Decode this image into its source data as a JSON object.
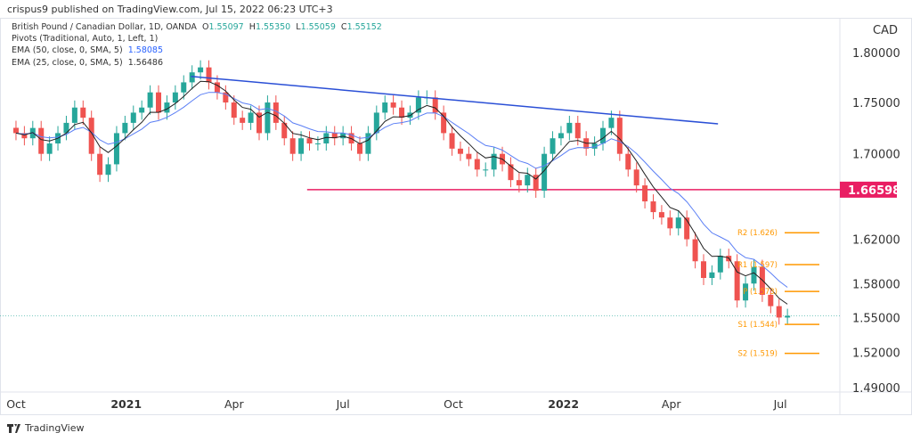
{
  "header": {
    "published": "crispus9 published on TradingView.com, Jul 15, 2022 06:23 UTC+3",
    "symbol": "British Pound / Canadian Dollar, 1D, OANDA",
    "ohlc": {
      "o_label": "O",
      "o": "1.55097",
      "h_label": "H",
      "h": "1.55350",
      "l_label": "L",
      "l": "1.55059",
      "c_label": "C",
      "c": "1.55152"
    },
    "pivots": "Pivots (Traditional, Auto, 1, Left, 1)",
    "ema50_label": "EMA (50, close, 0, SMA, 5)",
    "ema50_value": "1.58085",
    "ema25_label": "EMA (25, close, 0, SMA, 5)",
    "ema25_value": "1.56486"
  },
  "footer": {
    "brand": "TradingView"
  },
  "colors": {
    "up": "#26a69a",
    "down": "#ef5350",
    "ema50": "#5b7ff5",
    "ema25": "#222222",
    "trendline": "#2a4fd6",
    "support": "#e91e63",
    "pivot": "#ff9800"
  },
  "chart_data": {
    "type": "candlestick",
    "scale": "log",
    "currency": "CAD",
    "ylim": [
      1.47,
      1.83
    ],
    "y_ticks": [
      "1.80000",
      "1.75000",
      "1.70000",
      "1.62000",
      "1.58000",
      "1.55000",
      "1.52000",
      "1.49000"
    ],
    "x_ticks": [
      {
        "label": "Oct",
        "date": "2020-10-01",
        "bold": false
      },
      {
        "label": "2021",
        "date": "2021-01-01",
        "bold": true
      },
      {
        "label": "Apr",
        "date": "2021-04-01",
        "bold": false
      },
      {
        "label": "Jul",
        "date": "2021-07-01",
        "bold": false
      },
      {
        "label": "Oct",
        "date": "2021-10-01",
        "bold": false
      },
      {
        "label": "2022",
        "date": "2022-01-01",
        "bold": true
      },
      {
        "label": "Apr",
        "date": "2022-04-01",
        "bold": false
      },
      {
        "label": "Jul",
        "date": "2022-07-01",
        "bold": false
      }
    ],
    "start_date": "2020-09-28",
    "interval_days": 7,
    "closes": [
      1.72,
      1.715,
      1.725,
      1.7,
      1.71,
      1.72,
      1.73,
      1.745,
      1.735,
      1.7,
      1.68,
      1.69,
      1.72,
      1.73,
      1.74,
      1.745,
      1.76,
      1.74,
      1.75,
      1.76,
      1.77,
      1.78,
      1.785,
      1.77,
      1.76,
      1.75,
      1.735,
      1.73,
      1.74,
      1.72,
      1.75,
      1.73,
      1.715,
      1.7,
      1.715,
      1.71,
      1.71,
      1.72,
      1.715,
      1.72,
      1.71,
      1.7,
      1.72,
      1.74,
      1.75,
      1.745,
      1.735,
      1.74,
      1.755,
      1.755,
      1.74,
      1.72,
      1.705,
      1.7,
      1.695,
      1.685,
      1.685,
      1.7,
      1.69,
      1.675,
      1.67,
      1.68,
      1.665,
      1.7,
      1.715,
      1.72,
      1.73,
      1.715,
      1.705,
      1.71,
      1.725,
      1.735,
      1.7,
      1.685,
      1.67,
      1.655,
      1.645,
      1.64,
      1.63,
      1.64,
      1.62,
      1.6,
      1.585,
      1.59,
      1.605,
      1.6,
      1.565,
      1.58,
      1.595,
      1.57,
      1.56,
      1.55,
      1.5515
    ],
    "last_price": 1.55152,
    "horizontal_level": {
      "value": 1.66598,
      "label": "1.66598",
      "from": "2021-06-01"
    },
    "trendline": {
      "from": {
        "date": "2021-02-24",
        "price": 1.776
      },
      "to": {
        "date": "2022-05-10",
        "price": 1.729
      }
    },
    "pivot_levels": [
      {
        "name": "R2",
        "value": 1.626,
        "label": "R2 (1.626)"
      },
      {
        "name": "R1",
        "value": 1.597,
        "label": "R1 (1.597)"
      },
      {
        "name": "P",
        "value": 1.573,
        "label": "P (1.573)"
      },
      {
        "name": "S1",
        "value": 1.544,
        "label": "S1 (1.544)"
      },
      {
        "name": "S2",
        "value": 1.519,
        "label": "S2 (1.519)"
      }
    ]
  }
}
